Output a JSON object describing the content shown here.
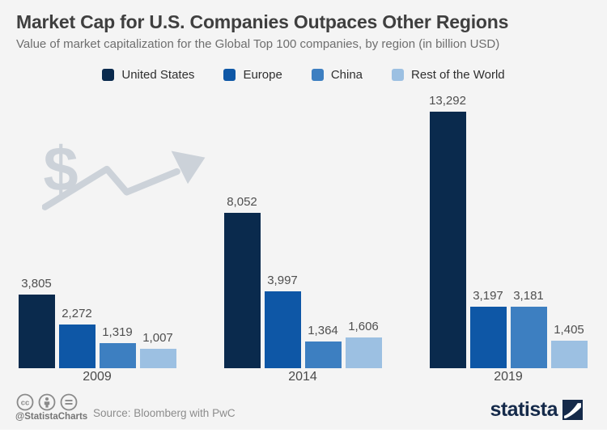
{
  "header": {
    "title": "Market Cap for U.S. Companies Outpaces Other Regions",
    "subtitle": "Value of market capitalization for the Global Top 100 companies, by region (in billion USD)"
  },
  "chart_data": {
    "type": "bar",
    "title": "Market Cap for U.S. Companies Outpaces Other Regions",
    "subtitle": "Value of market capitalization for the Global Top 100 companies, by region (in billion USD)",
    "categories": [
      "2009",
      "2014",
      "2019"
    ],
    "series": [
      {
        "name": "United States",
        "color": "#0a2a4d",
        "values": [
          3805,
          8052,
          13292
        ],
        "labels": [
          "3,805",
          "8,052",
          "13,292"
        ]
      },
      {
        "name": "Europe",
        "color": "#0e57a6",
        "values": [
          2272,
          3997,
          3197
        ],
        "labels": [
          "2,272",
          "3,997",
          "3,197"
        ]
      },
      {
        "name": "China",
        "color": "#3d7fc1",
        "values": [
          1319,
          1364,
          3181
        ],
        "labels": [
          "1,319",
          "1,364",
          "3,181"
        ]
      },
      {
        "name": "Rest of the World",
        "color": "#9cc0e2",
        "values": [
          1007,
          1606,
          1405
        ],
        "labels": [
          "1,007",
          "1,606",
          "1,405"
        ]
      }
    ],
    "xlabel": "",
    "ylabel": "",
    "ylim": [
      0,
      13292
    ],
    "grid": false,
    "legend_position": "top",
    "data_labels": true
  },
  "footer": {
    "handle": "@StatistaCharts",
    "source": "Source: Bloomberg with PwC",
    "brand": "statista"
  },
  "colors": {
    "background": "#f4f4f4",
    "title_text": "#3f3f3f",
    "subtitle_text": "#6e6e6e",
    "label_text": "#4f4f4f",
    "watermark": "#ccd2d9",
    "brand_navy": "#152a4a",
    "footer_gray": "#8c8c8c"
  },
  "icons": {
    "watermark": "dollar-trend-arrow-icon",
    "license": [
      "cc-icon",
      "cc-by-icon",
      "cc-nd-icon"
    ],
    "brand_mark": "statista-logo-icon"
  }
}
